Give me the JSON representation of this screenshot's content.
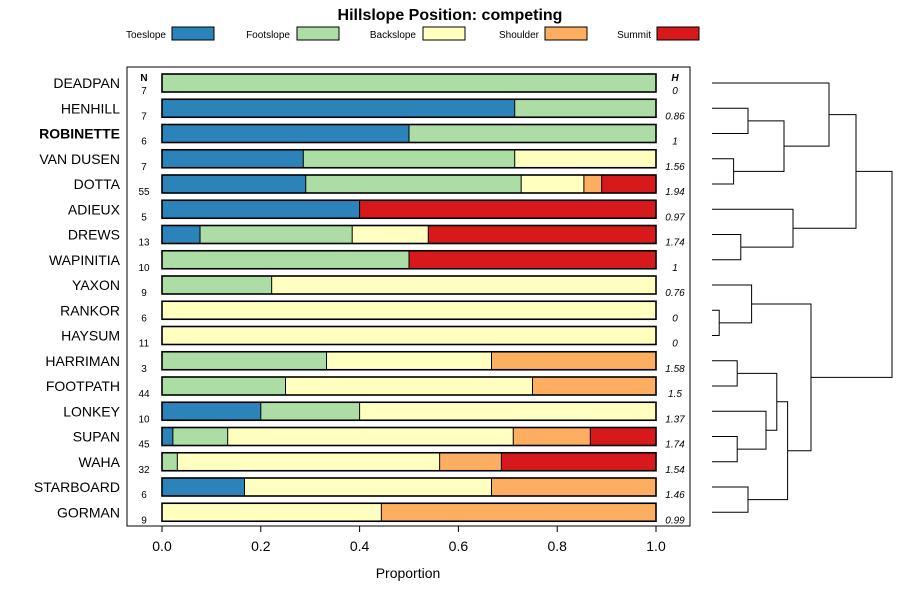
{
  "chart_data": {
    "type": "bar",
    "stacked": true,
    "orientation": "horizontal",
    "title": "Hillslope Position: competing",
    "xlabel": "Proportion",
    "xlim": [
      0,
      1
    ],
    "xticks": [
      "0.0",
      "0.2",
      "0.4",
      "0.6",
      "0.8",
      "1.0"
    ],
    "n_header": "N",
    "h_header": "H",
    "highlight": "ROBINETTE",
    "legend": [
      {
        "name": "Toeslope",
        "color": "#2B83BA"
      },
      {
        "name": "Footslope",
        "color": "#ABDDA4"
      },
      {
        "name": "Backslope",
        "color": "#FFFFBF"
      },
      {
        "name": "Shoulder",
        "color": "#FDAE61"
      },
      {
        "name": "Summit",
        "color": "#D7191C"
      }
    ],
    "rows": [
      {
        "name": "DEADPAN",
        "n": "7",
        "h": "0",
        "values": [
          0,
          1,
          0,
          0,
          0
        ]
      },
      {
        "name": "HENHILL",
        "n": "7",
        "h": "0.86",
        "values": [
          0.714,
          0.286,
          0,
          0,
          0
        ]
      },
      {
        "name": "ROBINETTE",
        "n": "6",
        "h": "1",
        "values": [
          0.5,
          0.5,
          0,
          0,
          0
        ]
      },
      {
        "name": "VAN DUSEN",
        "n": "7",
        "h": "1.56",
        "values": [
          0.286,
          0.428,
          0.286,
          0,
          0
        ]
      },
      {
        "name": "DOTTA",
        "n": "55",
        "h": "1.94",
        "values": [
          0.291,
          0.436,
          0.127,
          0.036,
          0.11
        ]
      },
      {
        "name": "ADIEUX",
        "n": "5",
        "h": "0.97",
        "values": [
          0.4,
          0,
          0,
          0,
          0.6
        ]
      },
      {
        "name": "DREWS",
        "n": "13",
        "h": "1.74",
        "values": [
          0.077,
          0.308,
          0.154,
          0,
          0.461
        ]
      },
      {
        "name": "WAPINITIA",
        "n": "10",
        "h": "1",
        "values": [
          0,
          0.5,
          0,
          0,
          0.5
        ]
      },
      {
        "name": "YAXON",
        "n": "9",
        "h": "0.76",
        "values": [
          0,
          0.222,
          0.778,
          0,
          0
        ]
      },
      {
        "name": "RANKOR",
        "n": "6",
        "h": "0",
        "values": [
          0,
          0,
          1,
          0,
          0
        ]
      },
      {
        "name": "HAYSUM",
        "n": "11",
        "h": "0",
        "values": [
          0,
          0,
          1,
          0,
          0
        ]
      },
      {
        "name": "HARRIMAN",
        "n": "3",
        "h": "1.58",
        "values": [
          0,
          0.333,
          0.334,
          0.333,
          0
        ]
      },
      {
        "name": "FOOTPATH",
        "n": "44",
        "h": "1.5",
        "values": [
          0,
          0.25,
          0.5,
          0.25,
          0
        ]
      },
      {
        "name": "LONKEY",
        "n": "10",
        "h": "1.37",
        "values": [
          0.2,
          0.2,
          0.6,
          0,
          0
        ]
      },
      {
        "name": "SUPAN",
        "n": "45",
        "h": "1.74",
        "values": [
          0.022,
          0.111,
          0.578,
          0.156,
          0.133
        ]
      },
      {
        "name": "WAHA",
        "n": "32",
        "h": "1.54",
        "values": [
          0,
          0.031,
          0.531,
          0.125,
          0.313
        ]
      },
      {
        "name": "STARBOARD",
        "n": "6",
        "h": "1.46",
        "values": [
          0.167,
          0,
          0.5,
          0.333,
          0
        ]
      },
      {
        "name": "GORMAN",
        "n": "9",
        "h": "0.99",
        "values": [
          0,
          0,
          0.444,
          0.556,
          0
        ]
      }
    ],
    "dendrogram": {
      "leaves": [
        "DEADPAN",
        "HENHILL",
        "ROBINETTE",
        "VAN DUSEN",
        "DOTTA",
        "ADIEUX",
        "DREWS",
        "WAPINITIA",
        "YAXON",
        "RANKOR",
        "HAYSUM",
        "HARRIMAN",
        "FOOTPATH",
        "LONKEY",
        "SUPAN",
        "WAHA",
        "STARBOARD",
        "GORMAN"
      ],
      "merges": [
        {
          "id": "m1",
          "a": "HENHILL",
          "b": "ROBINETTE",
          "height": 0.2
        },
        {
          "id": "m2",
          "a": "VAN DUSEN",
          "b": "DOTTA",
          "height": 0.12
        },
        {
          "id": "m3",
          "a": "m1",
          "b": "m2",
          "height": 0.4
        },
        {
          "id": "m4",
          "a": "DEADPAN",
          "b": "m3",
          "height": 0.65
        },
        {
          "id": "m5",
          "a": "DREWS",
          "b": "WAPINITIA",
          "height": 0.16
        },
        {
          "id": "m6",
          "a": "ADIEUX",
          "b": "m5",
          "height": 0.45
        },
        {
          "id": "m7",
          "a": "m4",
          "b": "m6",
          "height": 0.8
        },
        {
          "id": "m8",
          "a": "RANKOR",
          "b": "HAYSUM",
          "height": 0.04
        },
        {
          "id": "m9",
          "a": "YAXON",
          "b": "m8",
          "height": 0.22
        },
        {
          "id": "m10",
          "a": "HARRIMAN",
          "b": "FOOTPATH",
          "height": 0.14
        },
        {
          "id": "m11",
          "a": "SUPAN",
          "b": "WAHA",
          "height": 0.14
        },
        {
          "id": "m12",
          "a": "LONKEY",
          "b": "m11",
          "height": 0.3
        },
        {
          "id": "m13",
          "a": "m10",
          "b": "m12",
          "height": 0.36
        },
        {
          "id": "m14",
          "a": "STARBOARD",
          "b": "GORMAN",
          "height": 0.2
        },
        {
          "id": "m15",
          "a": "m13",
          "b": "m14",
          "height": 0.42
        },
        {
          "id": "m16",
          "a": "m9",
          "b": "m15",
          "height": 0.55
        },
        {
          "id": "m17",
          "a": "m7",
          "b": "m16",
          "height": 1.0
        }
      ]
    }
  }
}
